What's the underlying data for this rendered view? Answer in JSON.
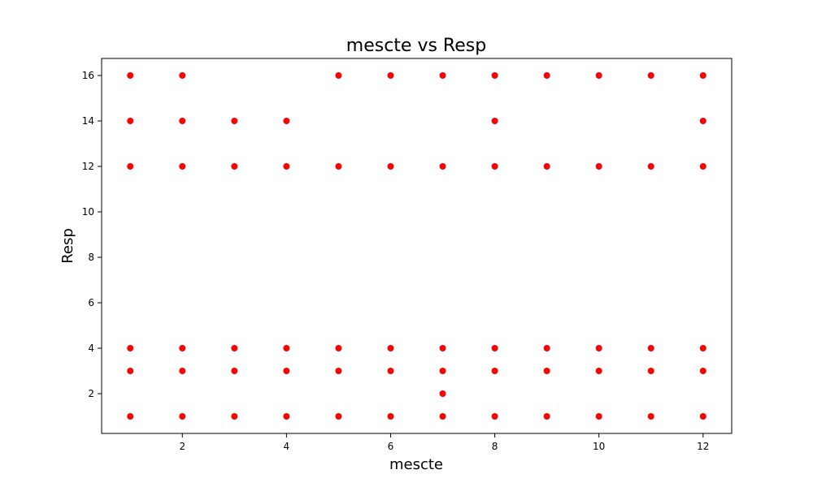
{
  "chart_data": {
    "type": "scatter",
    "title": "mescte vs Resp",
    "xlabel": "mescte",
    "ylabel": "Resp",
    "xlim": [
      0.45,
      12.55
    ],
    "ylim": [
      0.25,
      16.75
    ],
    "xticks": [
      2,
      4,
      6,
      8,
      10,
      12
    ],
    "yticks": [
      2,
      4,
      6,
      8,
      10,
      12,
      14,
      16
    ],
    "grid": false,
    "point_color": "#ff0000",
    "points": [
      [
        1,
        16
      ],
      [
        2,
        16
      ],
      [
        5,
        16
      ],
      [
        6,
        16
      ],
      [
        7,
        16
      ],
      [
        8,
        16
      ],
      [
        9,
        16
      ],
      [
        10,
        16
      ],
      [
        11,
        16
      ],
      [
        12,
        16
      ],
      [
        1,
        14
      ],
      [
        2,
        14
      ],
      [
        3,
        14
      ],
      [
        4,
        14
      ],
      [
        8,
        14
      ],
      [
        12,
        14
      ],
      [
        1,
        12
      ],
      [
        2,
        12
      ],
      [
        3,
        12
      ],
      [
        4,
        12
      ],
      [
        5,
        12
      ],
      [
        6,
        12
      ],
      [
        7,
        12
      ],
      [
        8,
        12
      ],
      [
        9,
        12
      ],
      [
        10,
        12
      ],
      [
        11,
        12
      ],
      [
        12,
        12
      ],
      [
        1,
        4
      ],
      [
        2,
        4
      ],
      [
        3,
        4
      ],
      [
        4,
        4
      ],
      [
        5,
        4
      ],
      [
        6,
        4
      ],
      [
        7,
        4
      ],
      [
        8,
        4
      ],
      [
        9,
        4
      ],
      [
        10,
        4
      ],
      [
        11,
        4
      ],
      [
        12,
        4
      ],
      [
        1,
        3
      ],
      [
        2,
        3
      ],
      [
        3,
        3
      ],
      [
        4,
        3
      ],
      [
        5,
        3
      ],
      [
        6,
        3
      ],
      [
        7,
        3
      ],
      [
        8,
        3
      ],
      [
        9,
        3
      ],
      [
        10,
        3
      ],
      [
        11,
        3
      ],
      [
        12,
        3
      ],
      [
        7,
        2
      ],
      [
        1,
        1
      ],
      [
        2,
        1
      ],
      [
        3,
        1
      ],
      [
        4,
        1
      ],
      [
        5,
        1
      ],
      [
        6,
        1
      ],
      [
        7,
        1
      ],
      [
        8,
        1
      ],
      [
        9,
        1
      ],
      [
        10,
        1
      ],
      [
        11,
        1
      ],
      [
        12,
        1
      ]
    ]
  }
}
